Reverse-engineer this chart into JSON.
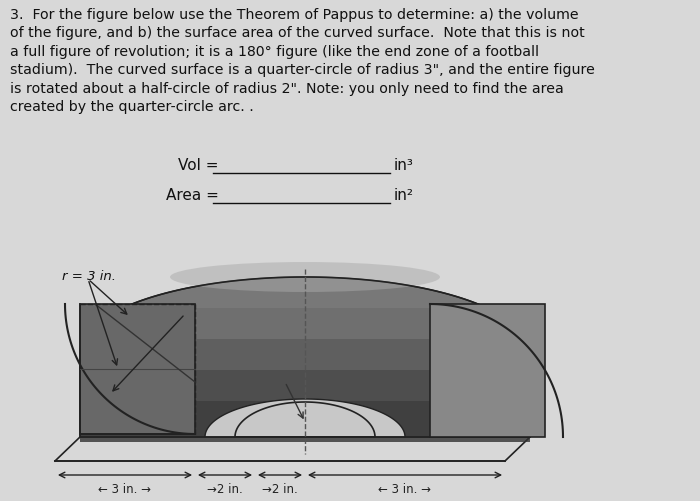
{
  "background_color": "#d8d8d8",
  "title_text": "3.  For the figure below use the Theorem of Pappus to determine: a) the volume\nof the figure, and b) the surface area of the curved surface.  Note that this is not\na full figure of revolution; it is a 180° figure (like the end zone of a football\nstadium).  The curved surface is a quarter-circle of radius 3\", and the entire figure\nis rotated about a half-circle of radius 2\". Note: you only need to find the area\ncreated by the quarter-circle arc. .",
  "vol_label": "Vol = ",
  "vol_units": "in³",
  "area_label": "Area = ",
  "area_units": "in²",
  "r_label": "r = 3 in.",
  "edge_color": "#222222",
  "body_dark": "#555555",
  "body_mid": "#7a7a7a",
  "body_light": "#aaaaaa",
  "body_top": "#888888",
  "back_face": "#6a6a6a",
  "right_face": "#8a8a8a",
  "bottom_cutout": "#cccccc",
  "text_color": "#111111"
}
